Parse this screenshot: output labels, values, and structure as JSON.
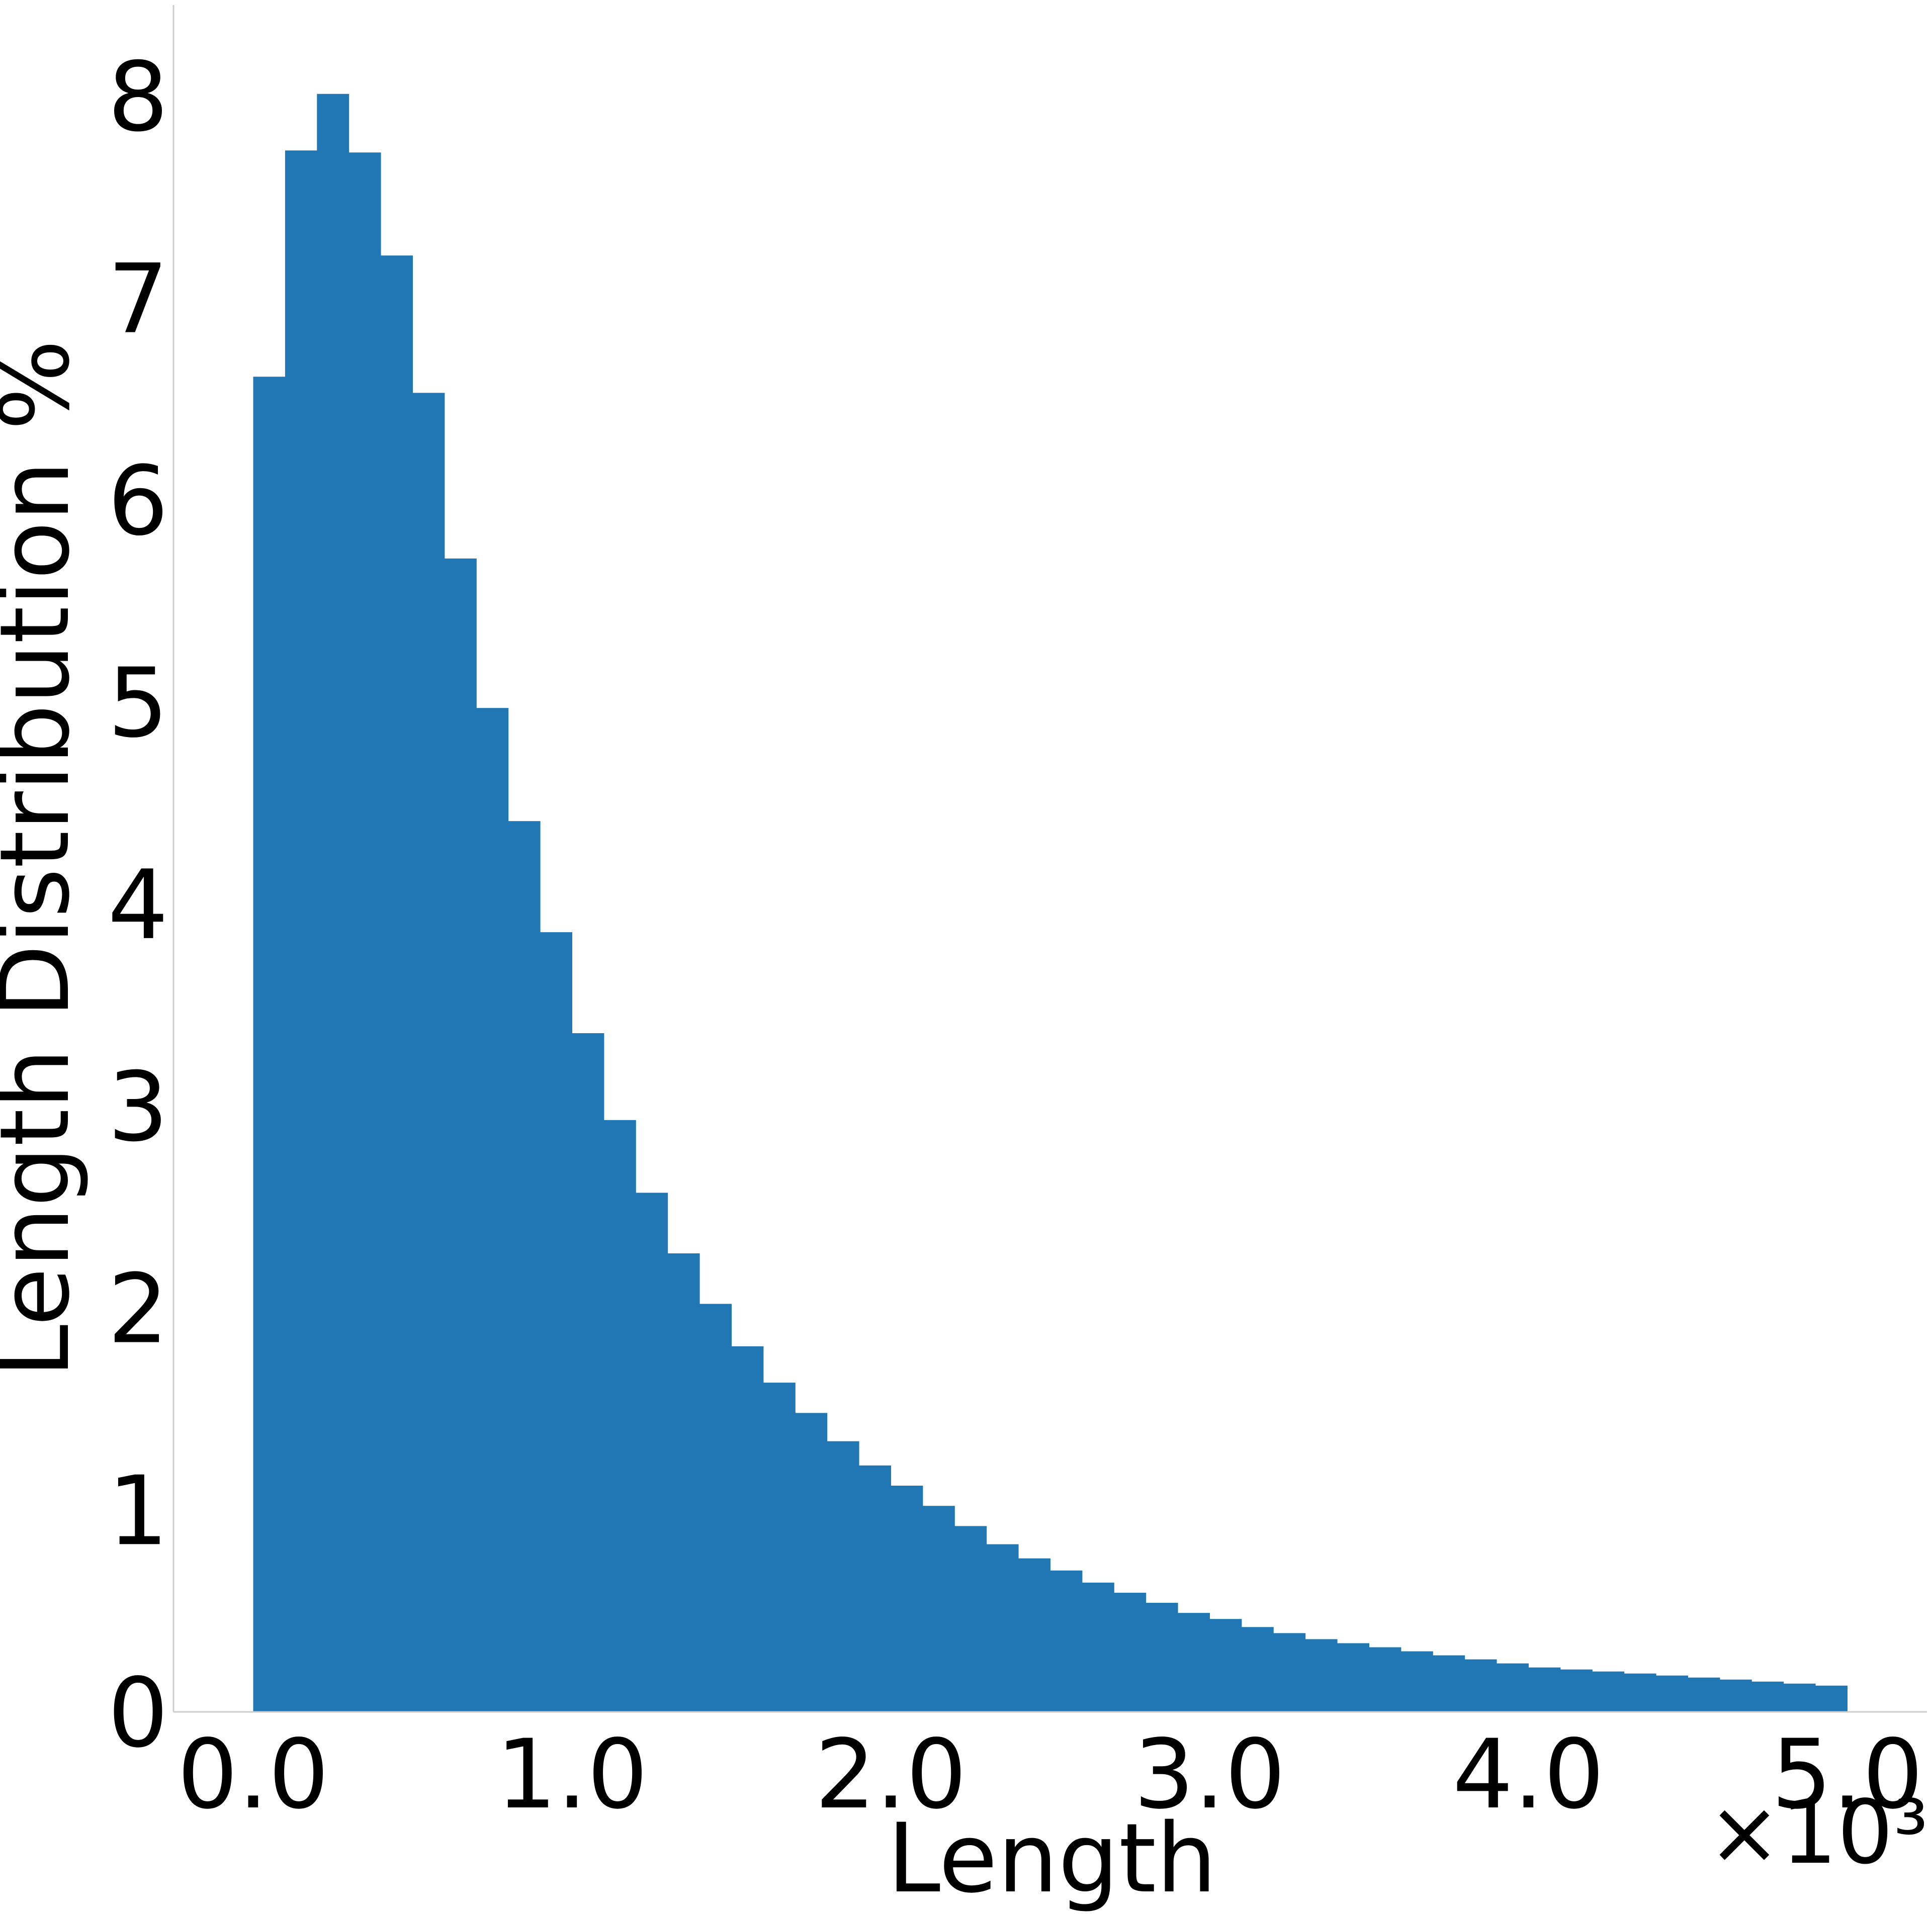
{
  "chart_data": {
    "type": "bar",
    "title": "",
    "xlabel": "Length",
    "ylabel": "Length Distribution %",
    "x_offset_label": "×10³",
    "x_unit_scale": 1000,
    "xlim": [
      -0.25,
      5.25
    ],
    "ylim": [
      0,
      8.45
    ],
    "xticks": [
      0.0,
      1.0,
      2.0,
      3.0,
      4.0,
      5.0
    ],
    "xtick_labels": [
      "0.0",
      "1.0",
      "2.0",
      "3.0",
      "4.0",
      "5.0"
    ],
    "yticks": [
      0,
      1,
      2,
      3,
      4,
      5,
      6,
      7,
      8
    ],
    "ytick_labels": [
      "0",
      "1",
      "2",
      "3",
      "4",
      "5",
      "6",
      "7",
      "8"
    ],
    "grid": false,
    "color": "#2077b4",
    "bin_width": 0.1,
    "bin_starts": [
      0.0,
      0.1,
      0.2,
      0.3,
      0.4,
      0.5,
      0.6,
      0.7,
      0.8,
      0.9,
      1.0,
      1.1,
      1.2,
      1.3,
      1.4,
      1.5,
      1.6,
      1.7,
      1.8,
      1.9,
      2.0,
      2.1,
      2.2,
      2.3,
      2.4,
      2.5,
      2.6,
      2.7,
      2.8,
      2.9,
      3.0,
      3.1,
      3.2,
      3.3,
      3.4,
      3.5,
      3.6,
      3.7,
      3.8,
      3.9,
      4.0,
      4.1,
      4.2,
      4.3,
      4.4,
      4.5,
      4.6,
      4.7,
      4.8,
      4.9
    ],
    "values": [
      6.61,
      7.73,
      8.01,
      7.72,
      7.21,
      6.53,
      5.71,
      4.97,
      4.41,
      3.86,
      3.36,
      2.93,
      2.57,
      2.27,
      2.02,
      1.81,
      1.63,
      1.48,
      1.34,
      1.22,
      1.12,
      1.02,
      0.92,
      0.83,
      0.76,
      0.7,
      0.64,
      0.59,
      0.54,
      0.49,
      0.46,
      0.42,
      0.39,
      0.36,
      0.34,
      0.32,
      0.3,
      0.28,
      0.26,
      0.24,
      0.22,
      0.21,
      0.2,
      0.19,
      0.18,
      0.17,
      0.16,
      0.15,
      0.14,
      0.13
    ]
  }
}
